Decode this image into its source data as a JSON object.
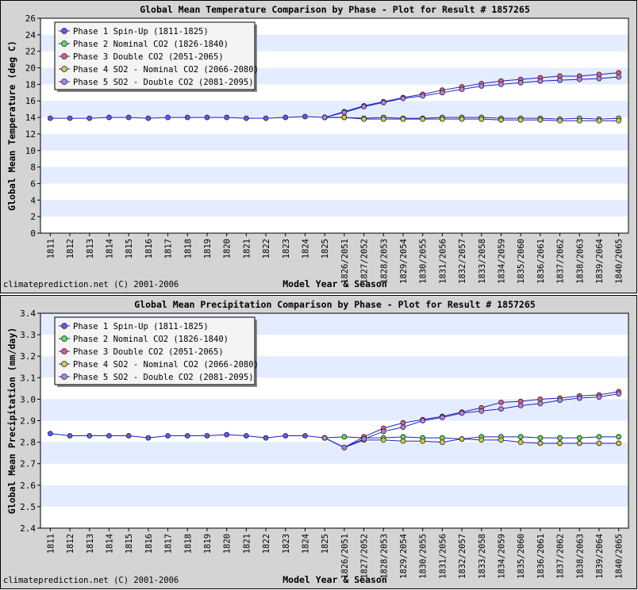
{
  "footer": "climateprediction.net (C) 2001-2006",
  "x_title": "Model Year & Season",
  "categories": [
    "1811",
    "1812",
    "1813",
    "1814",
    "1815",
    "1816",
    "1817",
    "1818",
    "1819",
    "1820",
    "1821",
    "1822",
    "1823",
    "1824",
    "1825",
    "1826/2051",
    "1827/2052",
    "1828/2053",
    "1829/2054",
    "1830/2055",
    "1831/2056",
    "1832/2057",
    "1833/2058",
    "1834/2059",
    "1835/2060",
    "1836/2061",
    "1837/2062",
    "1838/2063",
    "1839/2064",
    "1840/2065"
  ],
  "series_colors": [
    "#5a5aff",
    "#5ae05a",
    "#e05a8c",
    "#d2c84a",
    "#b482e6"
  ],
  "chart_data": [
    {
      "type": "line",
      "title": "Global Mean Temperature Comparison by Phase - Plot for Result # 1857265",
      "xlabel": "Model Year & Season",
      "ylabel": "Global Mean Temperature (deg C)",
      "ylim": [
        0,
        26
      ],
      "ytick_step": 2,
      "ytick_decimals": 0,
      "grid": true,
      "legend_position": "top-left",
      "series": [
        {
          "name": "Phase 1 Spin-Up      (1811-1825)",
          "start": 0,
          "values": [
            13.9,
            13.9,
            13.9,
            14.0,
            14.0,
            13.9,
            14.0,
            14.0,
            14.0,
            14.0,
            13.9,
            13.9,
            14.0,
            14.1,
            14.0
          ]
        },
        {
          "name": "Phase 2 Nominal CO2 (1826-1840)",
          "start": 14,
          "values": [
            14.0,
            14.0,
            13.9,
            14.0,
            13.9,
            13.9,
            14.0,
            14.0,
            14.0,
            13.9,
            13.9,
            13.9,
            13.8,
            13.9,
            13.8,
            13.9
          ]
        },
        {
          "name": "Phase 3 Double  CO2 (2051-2065)",
          "start": 14,
          "values": [
            14.0,
            14.7,
            15.4,
            15.9,
            16.4,
            16.8,
            17.3,
            17.7,
            18.1,
            18.4,
            18.6,
            18.8,
            19.0,
            19.0,
            19.2,
            19.4
          ]
        },
        {
          "name": "Phase 4 SO2 - Nominal CO2 (2066-2080)",
          "start": 14,
          "values": [
            14.0,
            14.0,
            13.8,
            13.8,
            13.8,
            13.8,
            13.8,
            13.8,
            13.8,
            13.7,
            13.7,
            13.7,
            13.6,
            13.6,
            13.6,
            13.6
          ]
        },
        {
          "name": "Phase 5 SO2 - Double CO2 (2081-2095)",
          "start": 14,
          "values": [
            14.0,
            14.6,
            15.3,
            15.8,
            16.3,
            16.6,
            17.0,
            17.4,
            17.8,
            18.0,
            18.2,
            18.4,
            18.5,
            18.6,
            18.7,
            18.9
          ]
        }
      ]
    },
    {
      "type": "line",
      "title": "Global Mean Precipitation Comparison by Phase - Plot for Result # 1857265",
      "xlabel": "Model Year & Season",
      "ylabel": "Global Mean Precipitation (mm/day)",
      "ylim": [
        2.4,
        3.4
      ],
      "ytick_step": 0.1,
      "ytick_decimals": 1,
      "grid": true,
      "legend_position": "top-left",
      "series": [
        {
          "name": "Phase 1 Spin-Up      (1811-1825)",
          "start": 0,
          "values": [
            2.84,
            2.83,
            2.83,
            2.83,
            2.83,
            2.82,
            2.83,
            2.83,
            2.83,
            2.835,
            2.83,
            2.82,
            2.83,
            2.83,
            2.82
          ]
        },
        {
          "name": "Phase 2 Nominal CO2 (1826-1840)",
          "start": 14,
          "values": [
            2.82,
            2.825,
            2.82,
            2.82,
            2.825,
            2.82,
            2.82,
            2.815,
            2.825,
            2.825,
            2.825,
            2.82,
            2.82,
            2.82,
            2.825,
            2.825
          ]
        },
        {
          "name": "Phase 3 Double  CO2 (2051-2065)",
          "start": 14,
          "values": [
            2.82,
            2.775,
            2.825,
            2.865,
            2.89,
            2.905,
            2.92,
            2.94,
            2.96,
            2.985,
            2.99,
            3.0,
            3.005,
            3.015,
            3.02,
            3.035
          ]
        },
        {
          "name": "Phase 4 SO2 - Nominal CO2 (2066-2080)",
          "start": 14,
          "values": [
            2.82,
            2.775,
            2.81,
            2.81,
            2.805,
            2.805,
            2.8,
            2.815,
            2.81,
            2.81,
            2.8,
            2.795,
            2.795,
            2.795,
            2.795,
            2.795
          ]
        },
        {
          "name": "Phase 5 SO2 - Double CO2 (2081-2095)",
          "start": 14,
          "values": [
            2.82,
            2.775,
            2.815,
            2.85,
            2.87,
            2.9,
            2.915,
            2.935,
            2.945,
            2.955,
            2.97,
            2.98,
            2.995,
            3.005,
            3.01,
            3.025
          ]
        }
      ]
    }
  ]
}
